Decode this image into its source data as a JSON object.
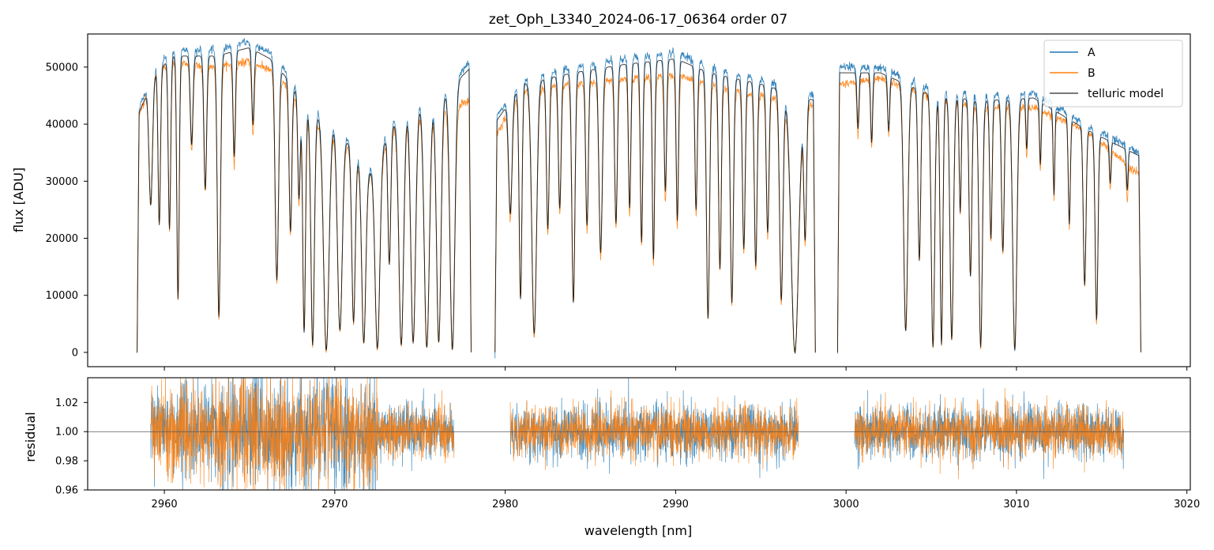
{
  "chart_data": [
    {
      "type": "line",
      "title": "zet_Oph_L3340_2024-06-17_06364  order 07",
      "xlabel": "",
      "ylabel": "flux [ADU]",
      "xlim": [
        2955.5,
        3020.2
      ],
      "ylim": [
        -2500,
        55800
      ],
      "yticks": [
        0,
        10000,
        20000,
        30000,
        40000,
        50000
      ],
      "ytick_labels": [
        "0",
        "10000",
        "20000",
        "30000",
        "40000",
        "50000"
      ],
      "xticks": [
        2960,
        2970,
        2980,
        2990,
        3000,
        3010,
        3020
      ],
      "segments": [
        [
          2958.4,
          2978.0
        ],
        [
          2979.4,
          2998.2
        ],
        [
          2999.5,
          3017.3
        ]
      ],
      "continuum_x": [
        2958.4,
        2959.5,
        2960.5,
        2963.0,
        2965.0,
        2966.5,
        2968.5,
        2970.0,
        2972.0,
        2974.0,
        2976.0,
        2978.0,
        2979.4,
        2981.0,
        2984.0,
        2987.0,
        2990.0,
        2992.0,
        2995.0,
        2998.2,
        2999.5,
        3002.0,
        3005.0,
        3008.0,
        3011.0,
        3014.0,
        3017.3
      ],
      "continuum_A": [
        42000,
        50000,
        53000,
        53000,
        54500,
        52000,
        43000,
        41000,
        32000,
        44000,
        45000,
        51000,
        41000,
        48000,
        50000,
        51500,
        52500,
        50000,
        48000,
        45000,
        50000,
        50000,
        46000,
        45000,
        45500,
        40000,
        35000
      ],
      "continuum_B": [
        41000,
        49000,
        51000,
        50000,
        51000,
        49000,
        41000,
        39000,
        31000,
        42000,
        43000,
        44000,
        38000,
        46000,
        47000,
        48000,
        48500,
        47000,
        45000,
        43000,
        47000,
        48000,
        45000,
        43000,
        43000,
        39000,
        31000
      ],
      "absorption_lines": [
        [
          2959.2,
          0.45,
          0.1
        ],
        [
          2959.7,
          0.55,
          0.07
        ],
        [
          2960.3,
          0.58,
          0.07
        ],
        [
          2960.8,
          0.82,
          0.07
        ],
        [
          2961.6,
          0.3,
          0.08
        ],
        [
          2962.4,
          0.45,
          0.08
        ],
        [
          2963.2,
          0.88,
          0.09
        ],
        [
          2964.1,
          0.35,
          0.07
        ],
        [
          2965.2,
          0.25,
          0.07
        ],
        [
          2966.6,
          0.75,
          0.1
        ],
        [
          2967.4,
          0.55,
          0.08
        ],
        [
          2967.9,
          0.4,
          0.07
        ],
        [
          2968.2,
          0.92,
          0.08
        ],
        [
          2968.7,
          0.97,
          0.1
        ],
        [
          2969.5,
          0.99,
          0.16
        ],
        [
          2970.3,
          0.9,
          0.14
        ],
        [
          2971.1,
          0.85,
          0.1
        ],
        [
          2971.7,
          0.95,
          0.12
        ],
        [
          2972.5,
          0.98,
          0.14
        ],
        [
          2973.2,
          0.6,
          0.08
        ],
        [
          2973.9,
          0.97,
          0.14
        ],
        [
          2974.6,
          0.96,
          0.14
        ],
        [
          2975.4,
          0.98,
          0.15
        ],
        [
          2976.1,
          0.96,
          0.13
        ],
        [
          2976.9,
          0.99,
          0.14
        ],
        [
          2980.3,
          0.45,
          0.1
        ],
        [
          2980.9,
          0.8,
          0.08
        ],
        [
          2981.7,
          0.93,
          0.14
        ],
        [
          2982.5,
          0.55,
          0.08
        ],
        [
          2983.2,
          0.48,
          0.08
        ],
        [
          2984.0,
          0.82,
          0.09
        ],
        [
          2984.8,
          0.55,
          0.08
        ],
        [
          2985.6,
          0.65,
          0.1
        ],
        [
          2986.5,
          0.55,
          0.08
        ],
        [
          2987.3,
          0.5,
          0.07
        ],
        [
          2988.0,
          0.62,
          0.07
        ],
        [
          2988.7,
          0.68,
          0.07
        ],
        [
          2989.4,
          0.45,
          0.07
        ],
        [
          2990.1,
          0.55,
          0.07
        ],
        [
          2991.2,
          0.5,
          0.07
        ],
        [
          2991.9,
          0.88,
          0.09
        ],
        [
          2992.6,
          0.7,
          0.08
        ],
        [
          2993.3,
          0.82,
          0.09
        ],
        [
          2994.0,
          0.62,
          0.08
        ],
        [
          2994.7,
          0.68,
          0.08
        ],
        [
          2995.4,
          0.55,
          0.08
        ],
        [
          2996.2,
          0.8,
          0.1
        ],
        [
          2997.0,
          1.0,
          0.22
        ],
        [
          2997.6,
          0.55,
          0.08
        ],
        [
          3000.7,
          0.2,
          0.06
        ],
        [
          3001.5,
          0.25,
          0.06
        ],
        [
          3002.5,
          0.2,
          0.06
        ],
        [
          3003.5,
          0.92,
          0.12
        ],
        [
          3004.3,
          0.65,
          0.08
        ],
        [
          3005.1,
          0.98,
          0.1
        ],
        [
          3005.6,
          0.97,
          0.08
        ],
        [
          3006.2,
          0.95,
          0.1
        ],
        [
          3006.7,
          0.45,
          0.06
        ],
        [
          3007.3,
          0.7,
          0.08
        ],
        [
          3007.9,
          0.98,
          0.1
        ],
        [
          3008.5,
          0.55,
          0.07
        ],
        [
          3009.2,
          0.6,
          0.08
        ],
        [
          3009.9,
          0.99,
          0.12
        ],
        [
          3010.6,
          0.2,
          0.05
        ],
        [
          3011.4,
          0.25,
          0.05
        ],
        [
          3012.2,
          0.35,
          0.05
        ],
        [
          3013.1,
          0.45,
          0.06
        ],
        [
          3014.0,
          0.7,
          0.08
        ],
        [
          3014.7,
          0.85,
          0.08
        ],
        [
          3015.5,
          0.2,
          0.05
        ],
        [
          3016.5,
          0.2,
          0.05
        ]
      ],
      "series": [
        {
          "name": "A",
          "color": "#1f77b4"
        },
        {
          "name": "B",
          "color": "#ff7f0e"
        },
        {
          "name": "telluric model",
          "color": "#000000"
        }
      ],
      "legend": "top-right"
    },
    {
      "type": "line",
      "title": "",
      "xlabel": "wavelength [nm]",
      "ylabel": "residual",
      "xlim": [
        2955.5,
        3020.2
      ],
      "ylim": [
        0.96,
        1.037
      ],
      "yticks": [
        0.96,
        0.98,
        1.0,
        1.02
      ],
      "ytick_labels": [
        "0.96",
        "0.98",
        "1.00",
        "1.02"
      ],
      "xticks": [
        2960,
        2970,
        2980,
        2990,
        3000,
        3010,
        3020
      ],
      "xtick_labels": [
        "2960",
        "2970",
        "2980",
        "2990",
        "3000",
        "3010",
        "3020"
      ],
      "reference_line": 1.0,
      "segments": [
        [
          2959.2,
          2977.0
        ],
        [
          2980.3,
          2997.2
        ],
        [
          3000.5,
          3016.3
        ]
      ],
      "noise_amplitude": [
        {
          "x": [
            2959.2,
            2963.0
          ],
          "amp": 0.02
        },
        {
          "x": [
            2963.0,
            2972.5
          ],
          "amp": 0.025
        },
        {
          "x": [
            2972.5,
            2977.0
          ],
          "amp": 0.012
        },
        {
          "x": [
            2980.3,
            2997.2
          ],
          "amp": 0.012
        },
        {
          "x": [
            3000.5,
            3016.3
          ],
          "amp": 0.012
        }
      ],
      "series": [
        {
          "name": "A",
          "color": "#1f77b4"
        },
        {
          "name": "B",
          "color": "#ff7f0e"
        }
      ]
    }
  ]
}
